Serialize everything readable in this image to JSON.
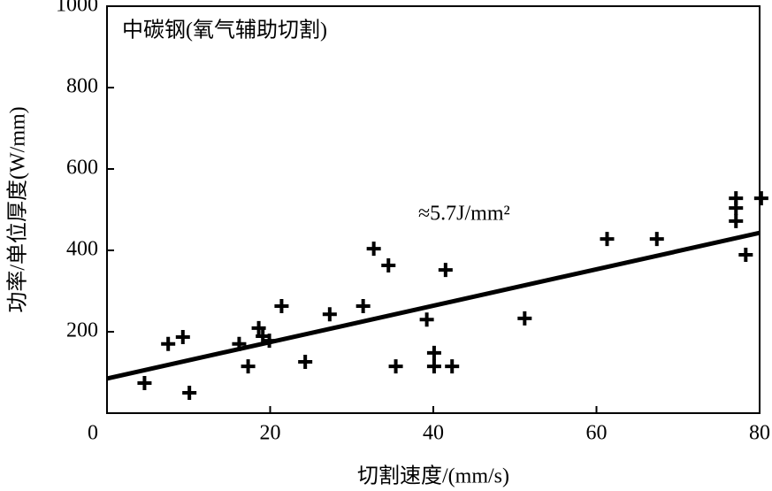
{
  "chart_data": {
    "type": "scatter",
    "title": "中碳钢(氧气辅助切割)",
    "x_label": "切割速度/(mm/s)",
    "y_label": "功率/单位厚度(W/mm)",
    "annotation": "≈5.7J/mm²",
    "x": [
      4.6,
      7.5,
      9.3,
      10.1,
      16.2,
      17.3,
      18.6,
      19.1,
      19.9,
      21.4,
      24.3,
      27.3,
      31.4,
      32.7,
      34.5,
      35.4,
      39.2,
      40.1,
      40.1,
      41.5,
      42.3,
      51.2,
      61.3,
      67.4,
      77.1,
      77.1,
      77.1,
      78.3,
      80.2
    ],
    "y": [
      74,
      170,
      187,
      50,
      170,
      115,
      209,
      189,
      178,
      263,
      126,
      243,
      263,
      404,
      363,
      115,
      230,
      148,
      115,
      352,
      115,
      233,
      428,
      428,
      528,
      504,
      472,
      389,
      528
    ],
    "trend": {
      "x": [
        0,
        80
      ],
      "y": [
        85,
        443
      ]
    },
    "color": "#000000",
    "xlim": [
      0,
      80
    ],
    "xticks": [
      0,
      20,
      40,
      60,
      80
    ],
    "ylim": [
      0,
      1000
    ],
    "yticks": [
      200,
      400,
      600,
      800,
      1000
    ]
  }
}
